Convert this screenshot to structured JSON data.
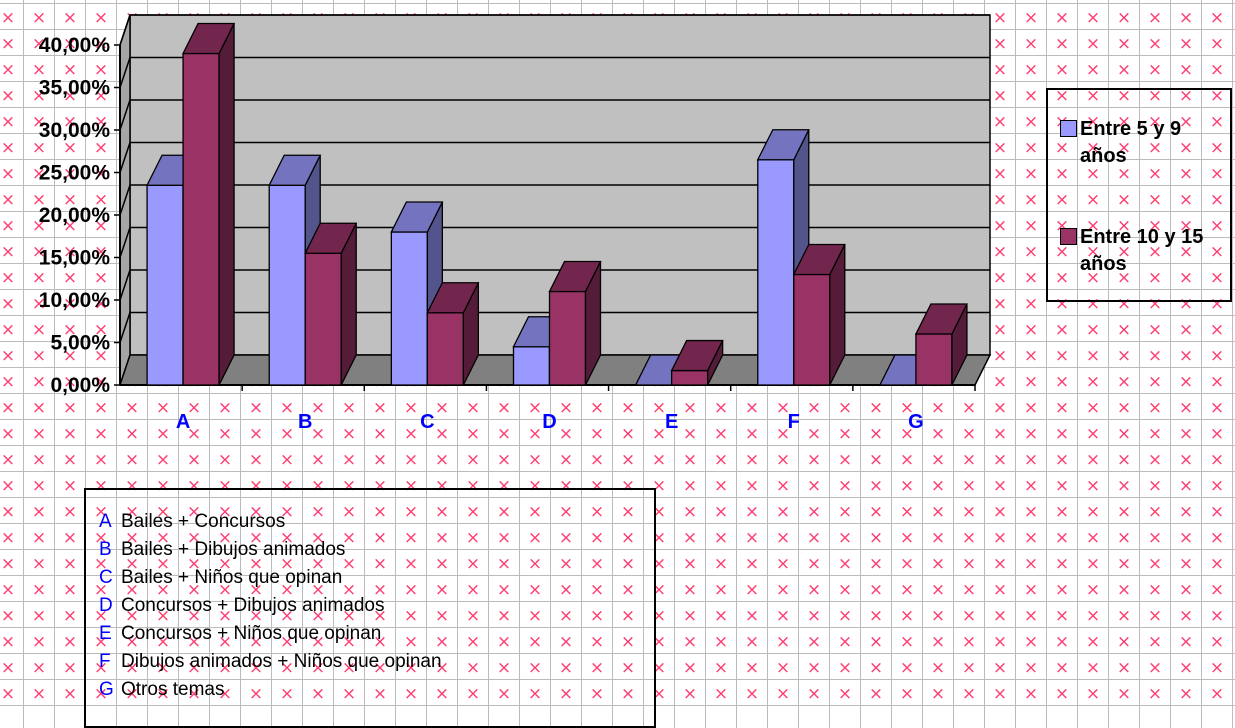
{
  "chart_data": {
    "type": "bar",
    "categories": [
      "A",
      "B",
      "C",
      "D",
      "E",
      "F",
      "G"
    ],
    "series": [
      {
        "name": "Entre 5 y 9 años",
        "color": "#9999ff",
        "values": [
          23.5,
          23.5,
          18.0,
          4.5,
          0.0,
          26.5,
          0.0
        ]
      },
      {
        "name": "Entre 10 y 15 años",
        "color": "#993366",
        "values": [
          39.0,
          15.5,
          8.5,
          11.0,
          1.7,
          13.0,
          6.0
        ]
      }
    ],
    "y_tick_labels": [
      "0,00%",
      "5,00%",
      "10,00%",
      "15,00%",
      "20,00%",
      "25,00%",
      "30,00%",
      "35,00%",
      "40,00%"
    ],
    "ylim": [
      0,
      40
    ],
    "title": "",
    "xlabel": "",
    "ylabel": "",
    "legend_position": "right",
    "grid": true,
    "category_key": [
      {
        "letter": "A",
        "label": "Bailes + Concursos"
      },
      {
        "letter": "B",
        "label": "Bailes + Dibujos animados"
      },
      {
        "letter": "C",
        "label": "Bailes + Niños que opinan"
      },
      {
        "letter": "D",
        "label": "Concursos + Dibujos animados"
      },
      {
        "letter": "E",
        "label": "Concursos + Niños que opinan"
      },
      {
        "letter": "F",
        "label": "Dibujos animados + Niños que opinan"
      },
      {
        "letter": "G",
        "label": "Otros temas"
      }
    ]
  }
}
